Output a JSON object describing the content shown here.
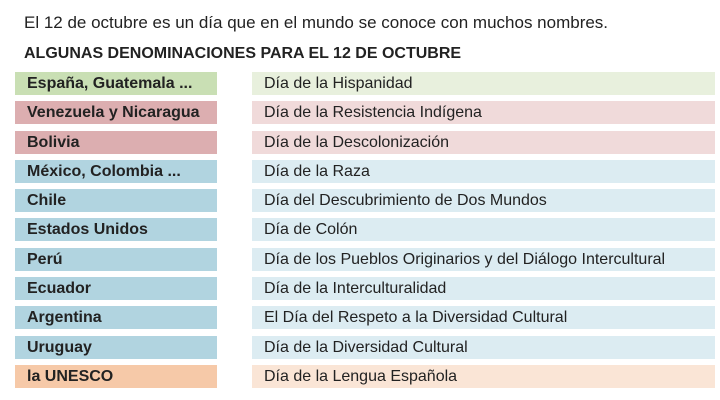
{
  "intro": "El 12 de octubre es un día que en el mundo se conoce con muchos nombres.",
  "heading": "ALGUNAS DENOMINACIONES PARA EL 12 DE OCTUBRE",
  "colors": {
    "green": "#c9dfb4",
    "red": "#dcaeb0",
    "blue": "#b1d4e0",
    "orange": "#f6c9a8"
  },
  "rows": [
    {
      "country": "España, Guatemala ...",
      "name": "Día de la Hispanidad",
      "color": "green"
    },
    {
      "country": "Venezuela y Nicaragua",
      "name": "Día de la Resistencia  Indígena",
      "color": "red"
    },
    {
      "country": "Bolivia",
      "name": "Día de la Descolonización",
      "color": "red"
    },
    {
      "country": "México, Colombia ...",
      "name": "Día de la Raza",
      "color": "blue"
    },
    {
      "country": "Chile",
      "name": "Día del Descubrimiento  de Dos Mundos",
      "color": "blue"
    },
    {
      "country": "Estados Unidos",
      "name": "Día de Colón",
      "color": "blue"
    },
    {
      "country": "Perú",
      "name": "Día de los Pueblos Originarios y del Diálogo Intercultural",
      "color": "blue"
    },
    {
      "country": "Ecuador",
      "name": "Día de la Interculturalidad",
      "color": "blue"
    },
    {
      "country": "Argentina",
      "name": "El Día del Respeto  a la Diversidad Cultural",
      "color": "blue"
    },
    {
      "country": "Uruguay",
      "name": "Día de la Diversidad Cultural",
      "color": "blue"
    },
    {
      "country": "la UNESCO",
      "name": "Día de la Lengua Española",
      "color": "orange"
    }
  ]
}
